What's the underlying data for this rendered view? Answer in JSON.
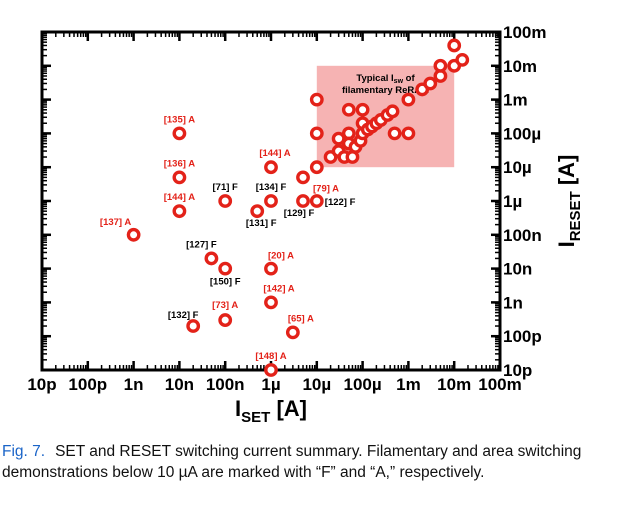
{
  "chart_data": {
    "type": "scatter",
    "x_scale": "log",
    "y_scale": "log",
    "xlabel": "I_SET [A]",
    "ylabel": "I_RESET [A]",
    "xlim": [
      1e-11,
      0.1
    ],
    "ylim": [
      1e-11,
      0.1
    ],
    "x_ticks": [
      {
        "value": 1e-11,
        "label": "10p"
      },
      {
        "value": 1e-10,
        "label": "100p"
      },
      {
        "value": 1e-09,
        "label": "1n"
      },
      {
        "value": 1e-08,
        "label": "10n"
      },
      {
        "value": 1e-07,
        "label": "100n"
      },
      {
        "value": 1e-06,
        "label": "1µ"
      },
      {
        "value": 1e-05,
        "label": "10µ"
      },
      {
        "value": 0.0001,
        "label": "100µ"
      },
      {
        "value": 0.001,
        "label": "1m"
      },
      {
        "value": 0.01,
        "label": "10m"
      },
      {
        "value": 0.1,
        "label": "100m"
      }
    ],
    "y_ticks": [
      {
        "value": 0.1,
        "label": "100m"
      },
      {
        "value": 0.01,
        "label": "10m"
      },
      {
        "value": 0.001,
        "label": "1m"
      },
      {
        "value": 0.0001,
        "label": "100µ"
      },
      {
        "value": 1e-05,
        "label": "10µ"
      },
      {
        "value": 1e-06,
        "label": "1µ"
      },
      {
        "value": 1e-07,
        "label": "100n"
      },
      {
        "value": 1e-08,
        "label": "10n"
      },
      {
        "value": 1e-09,
        "label": "1n"
      },
      {
        "value": 1e-10,
        "label": "100p"
      },
      {
        "value": 1e-11,
        "label": "10p"
      }
    ],
    "grid": false,
    "marker_color": "#e32219",
    "region_color": "#f6b3b3",
    "region": {
      "x": [
        1e-05,
        0.01
      ],
      "y": [
        1e-05,
        0.01
      ],
      "label_lines": [
        "Typical I_sw of",
        "filamentary ReRAM"
      ]
    },
    "labeled_points": [
      {
        "x": 1e-08,
        "y": 0.0001,
        "ref": "[135] A",
        "kind": "A"
      },
      {
        "x": 1e-08,
        "y": 5e-06,
        "ref": "[136] A",
        "kind": "A"
      },
      {
        "x": 1e-08,
        "y": 5e-07,
        "ref": "[144] A",
        "kind": "A"
      },
      {
        "x": 1e-09,
        "y": 1e-07,
        "ref": "[137] A",
        "kind": "A"
      },
      {
        "x": 1e-06,
        "y": 1e-05,
        "ref": "[144] A",
        "kind": "A"
      },
      {
        "x": 1e-07,
        "y": 1e-06,
        "ref": "[71] F",
        "kind": "F"
      },
      {
        "x": 1e-06,
        "y": 1e-06,
        "ref": "[134] F",
        "kind": "F"
      },
      {
        "x": 5e-07,
        "y": 5e-07,
        "ref": "[131] F",
        "kind": "F"
      },
      {
        "x": 5e-06,
        "y": 1e-06,
        "ref": "[129] F",
        "kind": "F"
      },
      {
        "x": 1e-05,
        "y": 1e-06,
        "ref": "[122] F",
        "kind": "F"
      },
      {
        "x": 5e-06,
        "y": 5e-06,
        "ref": "[79] A",
        "kind": "A"
      },
      {
        "x": 5e-08,
        "y": 2e-08,
        "ref": "[127] F",
        "kind": "F"
      },
      {
        "x": 1e-07,
        "y": 1e-08,
        "ref": "[150] F",
        "kind": "F"
      },
      {
        "x": 1e-06,
        "y": 1e-08,
        "ref": "[20] A",
        "kind": "A"
      },
      {
        "x": 1e-06,
        "y": 1e-09,
        "ref": "[142] A",
        "kind": "A"
      },
      {
        "x": 2e-08,
        "y": 2e-10,
        "ref": "[132] F",
        "kind": "F"
      },
      {
        "x": 1e-07,
        "y": 3e-10,
        "ref": "[73] A",
        "kind": "A"
      },
      {
        "x": 3e-06,
        "y": 1.3e-10,
        "ref": "[65] A",
        "kind": "A"
      },
      {
        "x": 1e-06,
        "y": 1e-11,
        "ref": "[148] A",
        "kind": "A"
      }
    ],
    "unlabeled_points": [
      {
        "x": 1e-05,
        "y": 0.001
      },
      {
        "x": 1e-05,
        "y": 0.0001
      },
      {
        "x": 1e-05,
        "y": 1e-05
      },
      {
        "x": 2e-05,
        "y": 2e-05
      },
      {
        "x": 3e-05,
        "y": 3e-05
      },
      {
        "x": 3e-05,
        "y": 7e-05
      },
      {
        "x": 4e-05,
        "y": 2e-05
      },
      {
        "x": 5e-05,
        "y": 0.0005
      },
      {
        "x": 5e-05,
        "y": 0.0001
      },
      {
        "x": 5e-05,
        "y": 5e-05
      },
      {
        "x": 6e-05,
        "y": 2e-05
      },
      {
        "x": 7e-05,
        "y": 4e-05
      },
      {
        "x": 9e-05,
        "y": 6e-05
      },
      {
        "x": 0.0001,
        "y": 0.0005
      },
      {
        "x": 0.0001,
        "y": 0.0002
      },
      {
        "x": 0.0001,
        "y": 0.0001
      },
      {
        "x": 0.00013,
        "y": 0.00013
      },
      {
        "x": 0.00016,
        "y": 0.00016
      },
      {
        "x": 0.0002,
        "y": 0.0002
      },
      {
        "x": 0.00025,
        "y": 0.00025
      },
      {
        "x": 0.00035,
        "y": 0.00035
      },
      {
        "x": 0.00045,
        "y": 0.00045
      },
      {
        "x": 0.0005,
        "y": 0.0001
      },
      {
        "x": 0.001,
        "y": 0.0001
      },
      {
        "x": 0.001,
        "y": 0.001
      },
      {
        "x": 0.002,
        "y": 0.002
      },
      {
        "x": 0.003,
        "y": 0.003
      },
      {
        "x": 0.005,
        "y": 0.005
      },
      {
        "x": 0.01,
        "y": 0.01
      },
      {
        "x": 0.015,
        "y": 0.015
      },
      {
        "x": 0.01,
        "y": 0.04
      },
      {
        "x": 0.005,
        "y": 0.01
      }
    ]
  },
  "caption": {
    "figure_label": "Fig. 7.",
    "text": "SET and RESET switching current summary. Filamentary and area switching demonstrations below 10 µA are marked with “F” and “A,” respectively."
  }
}
